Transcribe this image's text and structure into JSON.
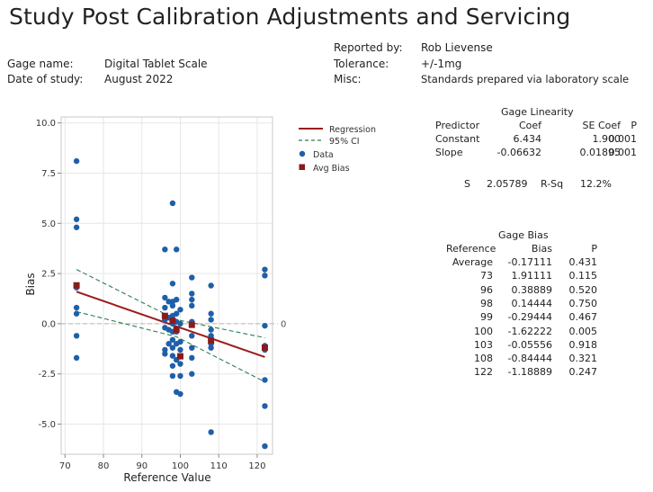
{
  "title": "Study Post Calibration Adjustments and Servicing",
  "header": {
    "gage_name_label": "Gage name:",
    "gage_name_value": "Digital Tablet Scale",
    "date_label": "Date of study:",
    "date_value": "August 2022",
    "reported_by_label": "Reported by:",
    "reported_by_value": "Rob Lievense",
    "tolerance_label": "Tolerance:",
    "tolerance_value": "+/-1mg",
    "misc_label": "Misc:",
    "misc_value": "Standards prepared via laboratory scale"
  },
  "legend": {
    "regression": "Regression",
    "ci": "95% CI",
    "data": "Data",
    "avg_bias": "Avg Bias"
  },
  "linearity": {
    "title": "Gage Linearity",
    "headers": [
      "Predictor",
      "Coef",
      "SE Coef",
      "P"
    ],
    "rows": [
      [
        "Constant",
        "6.434",
        "1.900",
        "0.001"
      ],
      [
        "Slope",
        "-0.06632",
        "0.01895",
        "0.001"
      ]
    ],
    "s_label": "S",
    "s_value": "2.05789",
    "rsq_label": "R-Sq",
    "rsq_value": "12.2%"
  },
  "bias": {
    "title": "Gage Bias",
    "headers": [
      "Reference",
      "Bias",
      "P"
    ],
    "rows": [
      [
        "Average",
        "-0.17111",
        "0.431"
      ],
      [
        "73",
        "1.91111",
        "0.115"
      ],
      [
        "96",
        "0.38889",
        "0.520"
      ],
      [
        "98",
        "0.14444",
        "0.750"
      ],
      [
        "99",
        "-0.29444",
        "0.467"
      ],
      [
        "100",
        "-1.62222",
        "0.005"
      ],
      [
        "103",
        "-0.05556",
        "0.918"
      ],
      [
        "108",
        "-0.84444",
        "0.321"
      ],
      [
        "122",
        "-1.18889",
        "0.247"
      ]
    ]
  },
  "colors": {
    "regression": "#9b1c1c",
    "ci": "#2e7d4f",
    "data": "#1f5fa8",
    "avg_bias": "#8b1a1a",
    "grid": "#e6e6e6",
    "zero_line": "#b8b8b8"
  },
  "chart_data": {
    "type": "scatter",
    "xlabel": "Reference Value",
    "ylabel": "Bias",
    "xlim": [
      69,
      124
    ],
    "ylim": [
      -6.5,
      10.3
    ],
    "xticks": [
      70,
      80,
      90,
      100,
      110,
      120
    ],
    "yticks": [
      -5.0,
      -2.5,
      0.0,
      2.5,
      5.0,
      7.5,
      10.0
    ],
    "ytick_labels": [
      "-5.0",
      "-2.5",
      "0.0",
      "2.5",
      "5.0",
      "7.5",
      "10.0"
    ],
    "zero_label": "0",
    "grid": true,
    "regression": {
      "intercept": 6.434,
      "slope": -0.06632
    },
    "ci_upper": [
      [
        73,
        2.7
      ],
      [
        99,
        0.2
      ],
      [
        122,
        -0.7
      ]
    ],
    "ci_lower": [
      [
        73,
        0.6
      ],
      [
        99,
        -0.65
      ],
      [
        122,
        -2.9
      ]
    ],
    "avg_bias": [
      [
        73,
        1.91111
      ],
      [
        96,
        0.38889
      ],
      [
        98,
        0.14444
      ],
      [
        99,
        -0.29444
      ],
      [
        100,
        -1.62222
      ],
      [
        103,
        -0.05556
      ],
      [
        108,
        -0.84444
      ],
      [
        122,
        -1.18889
      ]
    ],
    "points": [
      [
        73,
        8.1
      ],
      [
        73,
        5.2
      ],
      [
        73,
        4.8
      ],
      [
        73,
        1.8
      ],
      [
        73,
        0.8
      ],
      [
        73,
        0.5
      ],
      [
        73,
        -0.6
      ],
      [
        73,
        -1.7
      ],
      [
        96,
        3.7
      ],
      [
        96,
        1.3
      ],
      [
        96,
        0.8
      ],
      [
        96,
        0.2
      ],
      [
        96,
        -0.2
      ],
      [
        96,
        -1.3
      ],
      [
        96,
        -1.5
      ],
      [
        97,
        1.1
      ],
      [
        97,
        0.3
      ],
      [
        97,
        -0.3
      ],
      [
        97,
        -1.0
      ],
      [
        98,
        6.0
      ],
      [
        98,
        2.0
      ],
      [
        98,
        1.1
      ],
      [
        98,
        0.9
      ],
      [
        98,
        0.4
      ],
      [
        98,
        0.0
      ],
      [
        98,
        -0.4
      ],
      [
        98,
        -0.8
      ],
      [
        98,
        -1.2
      ],
      [
        98,
        -1.6
      ],
      [
        98,
        -2.1
      ],
      [
        98,
        -2.6
      ],
      [
        99,
        3.7
      ],
      [
        99,
        1.2
      ],
      [
        99,
        0.5
      ],
      [
        99,
        0.1
      ],
      [
        99,
        -0.4
      ],
      [
        99,
        -1.0
      ],
      [
        99,
        -1.8
      ],
      [
        99,
        -3.4
      ],
      [
        100,
        0.7
      ],
      [
        100,
        0.0
      ],
      [
        100,
        -0.9
      ],
      [
        100,
        -1.3
      ],
      [
        100,
        -2.0
      ],
      [
        100,
        -2.6
      ],
      [
        100,
        -3.5
      ],
      [
        103,
        2.3
      ],
      [
        103,
        1.5
      ],
      [
        103,
        1.2
      ],
      [
        103,
        0.9
      ],
      [
        103,
        0.1
      ],
      [
        103,
        -0.6
      ],
      [
        103,
        -1.2
      ],
      [
        103,
        -1.7
      ],
      [
        103,
        -2.5
      ],
      [
        108,
        1.9
      ],
      [
        108,
        0.5
      ],
      [
        108,
        0.2
      ],
      [
        108,
        -0.3
      ],
      [
        108,
        -0.6
      ],
      [
        108,
        -1.0
      ],
      [
        108,
        -1.2
      ],
      [
        108,
        -5.4
      ],
      [
        122,
        2.7
      ],
      [
        122,
        2.4
      ],
      [
        122,
        -0.1
      ],
      [
        122,
        -1.1
      ],
      [
        122,
        -1.3
      ],
      [
        122,
        -2.8
      ],
      [
        122,
        -4.1
      ],
      [
        122,
        -6.1
      ]
    ]
  }
}
